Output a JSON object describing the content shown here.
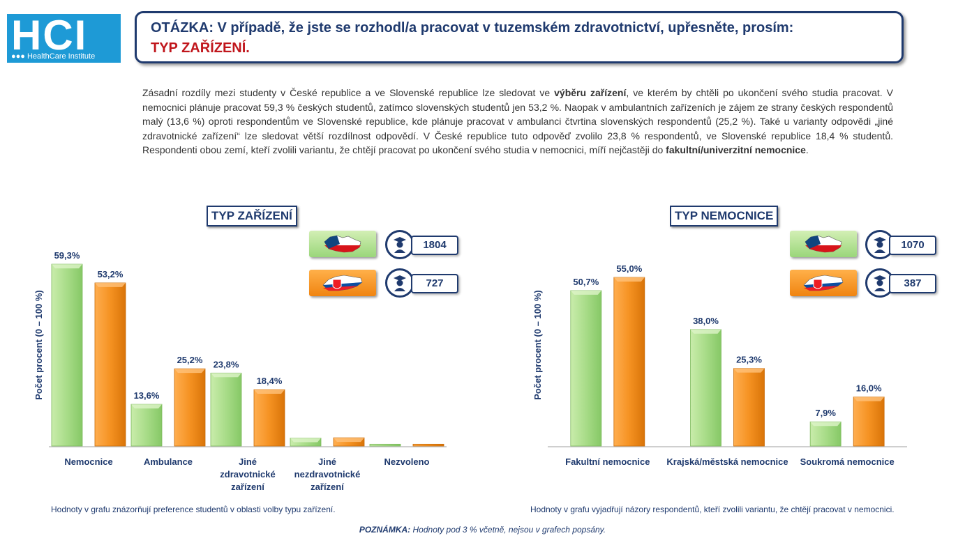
{
  "logo": {
    "big": "HCI",
    "small": "●●● HealthCare Institute"
  },
  "question": {
    "line1": "OTÁZKA: V případě, že jste se rozhodl/a pracovat v tuzemském zdravotnictví, upřesněte, prosím:",
    "line2": "TYP ZAŘÍZENÍ."
  },
  "intro": {
    "p1": "Zásadní rozdíly mezi studenty v České republice a ve Slovenské republice lze sledovat ve ",
    "b1": "výběru zařízení",
    "p2": ", ve kterém by chtěli po ukončení svého studia pracovat. V nemocnici plánuje pracovat 59,3 % českých studentů, zatímco slovenských studentů jen 53,2 %. Naopak v ambulantních zařízeních je zájem ze strany českých respondentů malý (13,6 %) oproti respondentům ve Slovenské republice, kde plánuje pracovat v ambulanci čtvrtina slovenských respondentů (25,2 %). Také u varianty odpovědi „jiné zdravotnické zařízení“ lze sledovat větší rozdílnost odpovědí. V České republice tuto odpověď zvolilo 23,8 % respondentů, ve Slovenské republice 18,4 % studentů. Respondenti obou zemí, kteří zvolili variantu, že chtějí pracovat po ukončení svého studia v nemocnici, míří nejčastěji do ",
    "b2": "fakultní/univerzitní nemocnice",
    "p3": "."
  },
  "colors": {
    "cz": "#9ad67a",
    "sk": "#f08410",
    "navy": "#1f3a6e"
  },
  "left": {
    "title": "TYP ZAŘÍZENÍ",
    "cz_count": "1804",
    "sk_count": "727",
    "note": "Hodnoty v grafu znázorňují preference studentů v oblasti volby typu zařízení."
  },
  "right": {
    "title": "TYP NEMOCNICE",
    "cz_count": "1070",
    "sk_count": "387",
    "note": "Hodnoty v grafu vyjadřují názory respondentů, kteří zvolili variantu, že chtějí pracovat v nemocnici."
  },
  "footnote": {
    "bold": "POZNÁMKA:",
    "text": " Hodnoty pod 3 % včetně, nejsou v grafech popsány."
  },
  "chart_data": [
    {
      "type": "bar",
      "title": "TYP ZAŘÍZENÍ",
      "ylabel": "Počet procent (0 – 100 %)",
      "categories": [
        [
          "Nemocnice"
        ],
        [
          "Ambulance"
        ],
        [
          "Jiné",
          "zdravotnické",
          "zařízení"
        ],
        [
          "Jiné",
          "nezdravotnické",
          "zařízení"
        ],
        [
          "Nezvoleno"
        ]
      ],
      "series": [
        {
          "name": "CZ",
          "values": [
            59.3,
            13.6,
            23.8,
            2.6,
            0.6
          ],
          "labels": [
            "59,3%",
            "13,6%",
            "23,8%",
            "",
            ""
          ]
        },
        {
          "name": "SK",
          "values": [
            53.2,
            25.2,
            18.4,
            2.7,
            0.6
          ],
          "labels": [
            "53,2%",
            "25,2%",
            "18,4%",
            "",
            ""
          ]
        }
      ],
      "ylim": [
        0,
        100
      ]
    },
    {
      "type": "bar",
      "title": "TYP NEMOCNICE",
      "ylabel": "Počet procent (0 – 100 %)",
      "categories": [
        [
          "Fakultní nemocnice"
        ],
        [
          "Krajská/městská nemocnice"
        ],
        [
          "Soukromá nemocnice"
        ]
      ],
      "series": [
        {
          "name": "CZ",
          "values": [
            50.7,
            38.0,
            7.9
          ],
          "labels": [
            "50,7%",
            "38,0%",
            "7,9%"
          ]
        },
        {
          "name": "SK",
          "values": [
            55.0,
            25.3,
            16.0
          ],
          "labels": [
            "55,0%",
            "25,3%",
            "16,0%"
          ]
        }
      ],
      "ylim": [
        0,
        100
      ]
    }
  ]
}
